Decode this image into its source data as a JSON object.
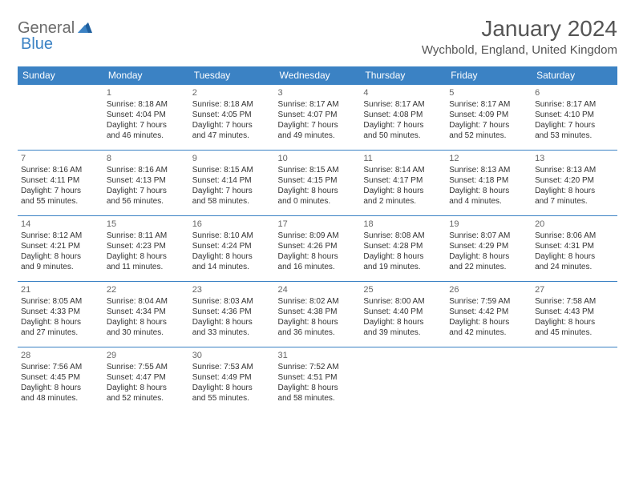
{
  "logo": {
    "text_general": "General",
    "text_blue": "Blue",
    "accent_color": "#3b82c4",
    "gray_color": "#6b6b6b"
  },
  "title": {
    "month": "January 2024",
    "location": "Wychbold, England, United Kingdom"
  },
  "colors": {
    "header_bg": "#3b82c4",
    "header_fg": "#ffffff",
    "border": "#3b82c4",
    "text": "#333333",
    "daynum": "#666666"
  },
  "day_headers": [
    "Sunday",
    "Monday",
    "Tuesday",
    "Wednesday",
    "Thursday",
    "Friday",
    "Saturday"
  ],
  "weeks": [
    [
      null,
      {
        "num": "1",
        "sunrise": "Sunrise: 8:18 AM",
        "sunset": "Sunset: 4:04 PM",
        "day1": "Daylight: 7 hours",
        "day2": "and 46 minutes."
      },
      {
        "num": "2",
        "sunrise": "Sunrise: 8:18 AM",
        "sunset": "Sunset: 4:05 PM",
        "day1": "Daylight: 7 hours",
        "day2": "and 47 minutes."
      },
      {
        "num": "3",
        "sunrise": "Sunrise: 8:17 AM",
        "sunset": "Sunset: 4:07 PM",
        "day1": "Daylight: 7 hours",
        "day2": "and 49 minutes."
      },
      {
        "num": "4",
        "sunrise": "Sunrise: 8:17 AM",
        "sunset": "Sunset: 4:08 PM",
        "day1": "Daylight: 7 hours",
        "day2": "and 50 minutes."
      },
      {
        "num": "5",
        "sunrise": "Sunrise: 8:17 AM",
        "sunset": "Sunset: 4:09 PM",
        "day1": "Daylight: 7 hours",
        "day2": "and 52 minutes."
      },
      {
        "num": "6",
        "sunrise": "Sunrise: 8:17 AM",
        "sunset": "Sunset: 4:10 PM",
        "day1": "Daylight: 7 hours",
        "day2": "and 53 minutes."
      }
    ],
    [
      {
        "num": "7",
        "sunrise": "Sunrise: 8:16 AM",
        "sunset": "Sunset: 4:11 PM",
        "day1": "Daylight: 7 hours",
        "day2": "and 55 minutes."
      },
      {
        "num": "8",
        "sunrise": "Sunrise: 8:16 AM",
        "sunset": "Sunset: 4:13 PM",
        "day1": "Daylight: 7 hours",
        "day2": "and 56 minutes."
      },
      {
        "num": "9",
        "sunrise": "Sunrise: 8:15 AM",
        "sunset": "Sunset: 4:14 PM",
        "day1": "Daylight: 7 hours",
        "day2": "and 58 minutes."
      },
      {
        "num": "10",
        "sunrise": "Sunrise: 8:15 AM",
        "sunset": "Sunset: 4:15 PM",
        "day1": "Daylight: 8 hours",
        "day2": "and 0 minutes."
      },
      {
        "num": "11",
        "sunrise": "Sunrise: 8:14 AM",
        "sunset": "Sunset: 4:17 PM",
        "day1": "Daylight: 8 hours",
        "day2": "and 2 minutes."
      },
      {
        "num": "12",
        "sunrise": "Sunrise: 8:13 AM",
        "sunset": "Sunset: 4:18 PM",
        "day1": "Daylight: 8 hours",
        "day2": "and 4 minutes."
      },
      {
        "num": "13",
        "sunrise": "Sunrise: 8:13 AM",
        "sunset": "Sunset: 4:20 PM",
        "day1": "Daylight: 8 hours",
        "day2": "and 7 minutes."
      }
    ],
    [
      {
        "num": "14",
        "sunrise": "Sunrise: 8:12 AM",
        "sunset": "Sunset: 4:21 PM",
        "day1": "Daylight: 8 hours",
        "day2": "and 9 minutes."
      },
      {
        "num": "15",
        "sunrise": "Sunrise: 8:11 AM",
        "sunset": "Sunset: 4:23 PM",
        "day1": "Daylight: 8 hours",
        "day2": "and 11 minutes."
      },
      {
        "num": "16",
        "sunrise": "Sunrise: 8:10 AM",
        "sunset": "Sunset: 4:24 PM",
        "day1": "Daylight: 8 hours",
        "day2": "and 14 minutes."
      },
      {
        "num": "17",
        "sunrise": "Sunrise: 8:09 AM",
        "sunset": "Sunset: 4:26 PM",
        "day1": "Daylight: 8 hours",
        "day2": "and 16 minutes."
      },
      {
        "num": "18",
        "sunrise": "Sunrise: 8:08 AM",
        "sunset": "Sunset: 4:28 PM",
        "day1": "Daylight: 8 hours",
        "day2": "and 19 minutes."
      },
      {
        "num": "19",
        "sunrise": "Sunrise: 8:07 AM",
        "sunset": "Sunset: 4:29 PM",
        "day1": "Daylight: 8 hours",
        "day2": "and 22 minutes."
      },
      {
        "num": "20",
        "sunrise": "Sunrise: 8:06 AM",
        "sunset": "Sunset: 4:31 PM",
        "day1": "Daylight: 8 hours",
        "day2": "and 24 minutes."
      }
    ],
    [
      {
        "num": "21",
        "sunrise": "Sunrise: 8:05 AM",
        "sunset": "Sunset: 4:33 PM",
        "day1": "Daylight: 8 hours",
        "day2": "and 27 minutes."
      },
      {
        "num": "22",
        "sunrise": "Sunrise: 8:04 AM",
        "sunset": "Sunset: 4:34 PM",
        "day1": "Daylight: 8 hours",
        "day2": "and 30 minutes."
      },
      {
        "num": "23",
        "sunrise": "Sunrise: 8:03 AM",
        "sunset": "Sunset: 4:36 PM",
        "day1": "Daylight: 8 hours",
        "day2": "and 33 minutes."
      },
      {
        "num": "24",
        "sunrise": "Sunrise: 8:02 AM",
        "sunset": "Sunset: 4:38 PM",
        "day1": "Daylight: 8 hours",
        "day2": "and 36 minutes."
      },
      {
        "num": "25",
        "sunrise": "Sunrise: 8:00 AM",
        "sunset": "Sunset: 4:40 PM",
        "day1": "Daylight: 8 hours",
        "day2": "and 39 minutes."
      },
      {
        "num": "26",
        "sunrise": "Sunrise: 7:59 AM",
        "sunset": "Sunset: 4:42 PM",
        "day1": "Daylight: 8 hours",
        "day2": "and 42 minutes."
      },
      {
        "num": "27",
        "sunrise": "Sunrise: 7:58 AM",
        "sunset": "Sunset: 4:43 PM",
        "day1": "Daylight: 8 hours",
        "day2": "and 45 minutes."
      }
    ],
    [
      {
        "num": "28",
        "sunrise": "Sunrise: 7:56 AM",
        "sunset": "Sunset: 4:45 PM",
        "day1": "Daylight: 8 hours",
        "day2": "and 48 minutes."
      },
      {
        "num": "29",
        "sunrise": "Sunrise: 7:55 AM",
        "sunset": "Sunset: 4:47 PM",
        "day1": "Daylight: 8 hours",
        "day2": "and 52 minutes."
      },
      {
        "num": "30",
        "sunrise": "Sunrise: 7:53 AM",
        "sunset": "Sunset: 4:49 PM",
        "day1": "Daylight: 8 hours",
        "day2": "and 55 minutes."
      },
      {
        "num": "31",
        "sunrise": "Sunrise: 7:52 AM",
        "sunset": "Sunset: 4:51 PM",
        "day1": "Daylight: 8 hours",
        "day2": "and 58 minutes."
      },
      null,
      null,
      null
    ]
  ]
}
